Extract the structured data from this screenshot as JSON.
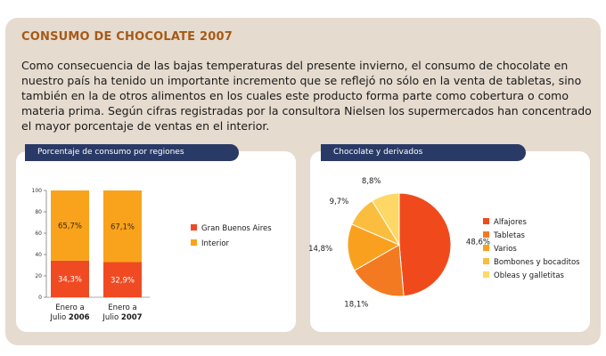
{
  "header": {
    "title": "CONSUMO DE CHOCOLATE 2007",
    "intro": "Como consecuencia de las bajas temperaturas del presente invierno, el consumo de chocolate en nuestro país ha tenido un importante incremento que se reflejó no sólo en la venta de tabletas, sino también en la de otros alimentos en los cuales este producto forma parte como cobertura o como materia prima. Según cifras registradas por la consultora Nielsen los supermercados han concentrado el mayor porcentaje de ventas en el interior."
  },
  "chart_data": [
    {
      "type": "bar",
      "stacked": true,
      "title": "Porcentaje de consumo por regiones",
      "categories": [
        {
          "line1": "Enero a",
          "line2_prefix": "Julio ",
          "line2_bold": "2006"
        },
        {
          "line1": "Enero a",
          "line2_prefix": "Julio ",
          "line2_bold": "2007"
        }
      ],
      "ylim": [
        0,
        100
      ],
      "yticks": [
        "0",
        "20",
        "40",
        "60",
        "80",
        "100"
      ],
      "series": [
        {
          "name": "Gran Buenos Aires",
          "color": "#f04a23",
          "values": [
            34.3,
            32.9
          ],
          "labels": [
            "34,3%",
            "32,9%"
          ]
        },
        {
          "name": "Interior",
          "color": "#f9a21b",
          "values": [
            65.7,
            67.1
          ],
          "labels": [
            "65,7%",
            "67,1%"
          ]
        }
      ],
      "legend_position": "right"
    },
    {
      "type": "pie",
      "title": "Chocolate y derivados",
      "slices": [
        {
          "name": "Alfajores",
          "value": 48.6,
          "label": "48,6%",
          "color": "#f04a1c"
        },
        {
          "name": "Tabletas",
          "value": 18.1,
          "label": "18,1%",
          "color": "#f47a21"
        },
        {
          "name": "Varios",
          "value": 14.8,
          "label": "14,8%",
          "color": "#f9a11f"
        },
        {
          "name": "Bombones y bocaditos",
          "value": 9.7,
          "label": "9,7%",
          "color": "#fbbd3e"
        },
        {
          "name": "Obleas y galletitas",
          "value": 8.8,
          "label": "8,8%",
          "color": "#fdd867"
        }
      ],
      "legend_position": "right"
    }
  ]
}
